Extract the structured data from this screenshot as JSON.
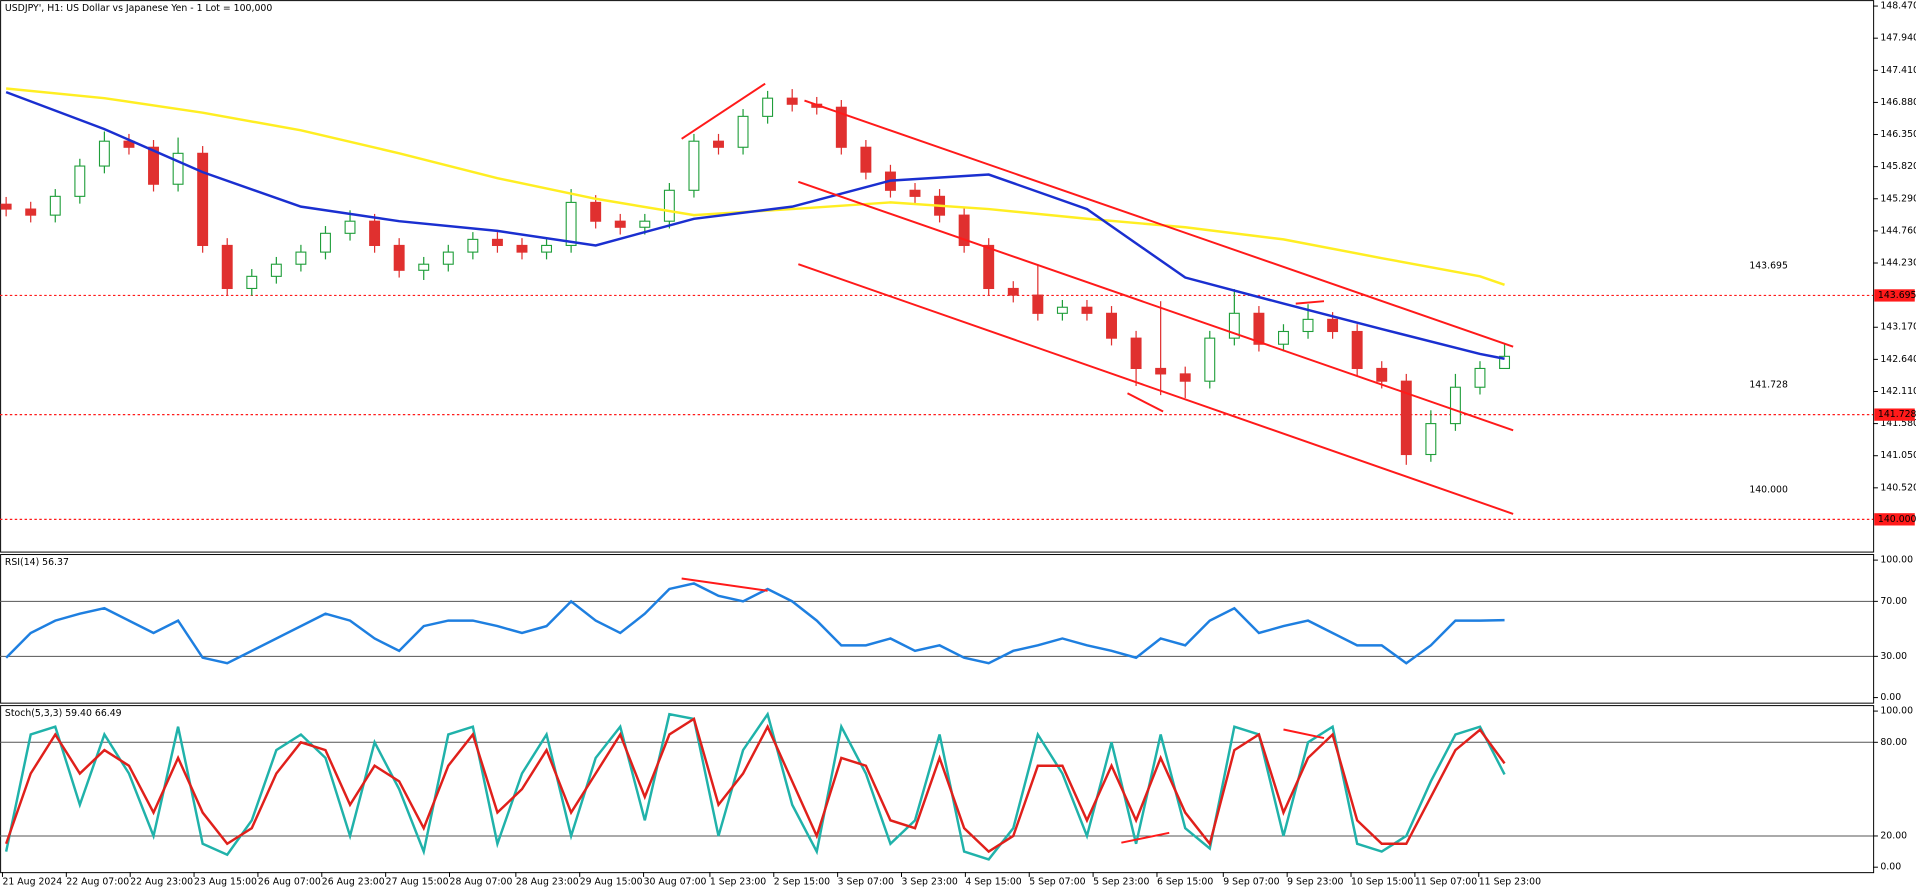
{
  "chart_data": [
    {
      "type": "candlestick",
      "title": "USDJPY', H1:  US Dollar vs Japanese Yen - 1 Lot = 100,000",
      "xlim": [
        -0.25,
        76
      ],
      "xticks": [
        {
          "value": -0.15,
          "label": "21 Aug 2024"
        },
        {
          "value": 2.45,
          "label": "22 Aug 07:00"
        },
        {
          "value": 5.05,
          "label": "22 Aug 23:00"
        },
        {
          "value": 7.65,
          "label": "23 Aug 15:00"
        },
        {
          "value": 10.25,
          "label": "26 Aug 07:00"
        },
        {
          "value": 12.85,
          "label": "26 Aug 23:00"
        },
        {
          "value": 15.45,
          "label": "27 Aug 15:00"
        },
        {
          "value": 18.05,
          "label": "28 Aug 07:00"
        },
        {
          "value": 20.75,
          "label": "28 Aug 23:00"
        },
        {
          "value": 23.35,
          "label": "29 Aug 15:00"
        },
        {
          "value": 25.95,
          "label": "30 Aug 07:00"
        },
        {
          "value": 28.65,
          "label": "1 Sep 23:00"
        },
        {
          "value": 31.25,
          "label": "2 Sep 15:00"
        },
        {
          "value": 33.85,
          "label": "3 Sep 07:00"
        },
        {
          "value": 36.45,
          "label": "3 Sep 23:00"
        },
        {
          "value": 39.05,
          "label": "4 Sep 15:00"
        },
        {
          "value": 41.65,
          "label": "5 Sep 07:00"
        },
        {
          "value": 44.25,
          "label": "5 Sep 23:00"
        },
        {
          "value": 46.85,
          "label": "6 Sep 15:00"
        },
        {
          "value": 49.55,
          "label": "9 Sep 07:00"
        },
        {
          "value": 52.15,
          "label": "9 Sep 23:00"
        },
        {
          "value": 54.75,
          "label": "10 Sep 15:00"
        },
        {
          "value": 57.35,
          "label": "11 Sep 07:00"
        },
        {
          "value": 59.95,
          "label": "11 Sep 23:00"
        }
      ],
      "ylim": [
        139.47,
        148.57
      ],
      "yticks": [
        {
          "value": 148.47,
          "label": "148.470"
        },
        {
          "value": 147.94,
          "label": "147.940"
        },
        {
          "value": 147.41,
          "label": "147.410"
        },
        {
          "value": 146.88,
          "label": "146.880"
        },
        {
          "value": 146.35,
          "label": "146.350"
        },
        {
          "value": 145.82,
          "label": "145.820"
        },
        {
          "value": 145.29,
          "label": "145.290"
        },
        {
          "value": 144.76,
          "label": "144.760"
        },
        {
          "value": 144.23,
          "label": "144.230"
        },
        {
          "value": 143.17,
          "label": "143.170"
        },
        {
          "value": 142.64,
          "label": "142.640"
        },
        {
          "value": 142.11,
          "label": "142.110"
        },
        {
          "value": 141.58,
          "label": "141.580"
        },
        {
          "value": 141.05,
          "label": "141.050"
        },
        {
          "value": 140.52,
          "label": "140.520"
        }
      ],
      "up_color": "#1f9e3a",
      "down_color": "#e0302f",
      "open": [
        145.2,
        145.12,
        145.02,
        145.33,
        145.83,
        146.24,
        146.14,
        145.53,
        146.04,
        144.52,
        143.81,
        144.01,
        144.21,
        144.41,
        144.72,
        144.92,
        144.52,
        144.11,
        144.21,
        144.41,
        144.62,
        144.52,
        144.41,
        144.52,
        145.23,
        144.92,
        144.82,
        144.92,
        145.43,
        146.24,
        146.14,
        146.65,
        146.95,
        146.85,
        146.8,
        146.14,
        145.73,
        145.43,
        145.33,
        145.02,
        144.52,
        143.81,
        143.7,
        143.4,
        143.5,
        143.4,
        142.99,
        142.49,
        142.4,
        142.28,
        142.99,
        143.4,
        142.89,
        143.1,
        143.3,
        143.1,
        142.49,
        142.28,
        141.07,
        141.58,
        142.18,
        142.49
      ],
      "high": [
        145.32,
        145.24,
        145.45,
        145.95,
        146.4,
        146.36,
        146.26,
        146.3,
        146.16,
        144.64,
        144.13,
        144.33,
        144.53,
        144.84,
        145.1,
        145.04,
        144.64,
        144.33,
        144.53,
        144.74,
        144.74,
        144.64,
        144.64,
        145.45,
        145.35,
        145.04,
        145.04,
        145.55,
        146.36,
        146.36,
        146.77,
        147.07,
        147.1,
        146.97,
        146.92,
        146.26,
        145.85,
        145.55,
        145.45,
        145.14,
        144.64,
        143.93,
        144.21,
        143.62,
        143.62,
        143.52,
        143.11,
        143.6,
        142.52,
        143.11,
        143.8,
        143.52,
        143.22,
        143.55,
        143.42,
        143.22,
        142.61,
        142.4,
        141.8,
        142.4,
        142.61,
        142.9
      ],
      "low": [
        145.0,
        144.9,
        144.9,
        145.21,
        145.71,
        146.02,
        145.41,
        145.41,
        144.4,
        143.69,
        143.69,
        143.89,
        144.09,
        144.29,
        144.6,
        144.4,
        143.99,
        143.95,
        144.09,
        144.29,
        144.4,
        144.29,
        144.29,
        144.4,
        144.8,
        144.7,
        144.7,
        144.8,
        145.31,
        146.02,
        146.02,
        146.53,
        146.73,
        146.68,
        146.02,
        145.61,
        145.31,
        145.21,
        144.9,
        144.4,
        143.69,
        143.58,
        143.28,
        143.28,
        143.28,
        142.87,
        142.2,
        142.05,
        142.0,
        142.16,
        142.87,
        142.77,
        142.77,
        142.98,
        142.98,
        142.37,
        142.16,
        140.9,
        140.95,
        141.46,
        142.06,
        142.5
      ],
      "close": [
        145.12,
        145.02,
        145.33,
        145.83,
        146.24,
        146.14,
        145.53,
        146.04,
        144.52,
        143.81,
        144.01,
        144.21,
        144.41,
        144.72,
        144.92,
        144.52,
        144.11,
        144.21,
        144.41,
        144.62,
        144.52,
        144.41,
        144.52,
        145.23,
        144.92,
        144.82,
        144.92,
        145.43,
        146.24,
        146.14,
        146.65,
        146.95,
        146.85,
        146.8,
        146.14,
        145.73,
        145.43,
        145.33,
        145.02,
        144.52,
        143.81,
        143.7,
        143.4,
        143.5,
        143.4,
        142.99,
        142.49,
        142.4,
        142.28,
        142.99,
        143.4,
        142.89,
        143.1,
        143.3,
        143.1,
        142.49,
        142.28,
        141.07,
        141.58,
        142.18,
        142.49,
        142.69
      ],
      "moving_averages": [
        {
          "color": "#ffee22",
          "x": [
            0,
            4,
            8,
            12,
            16,
            20,
            24,
            28,
            32,
            36,
            40,
            44,
            48,
            52,
            56,
            60,
            61
          ],
          "values": [
            147.11,
            146.95,
            146.71,
            146.42,
            146.04,
            145.63,
            145.29,
            145.02,
            145.12,
            145.23,
            145.12,
            144.96,
            144.82,
            144.62,
            144.31,
            144.01,
            143.87
          ]
        },
        {
          "color": "#1a2fd0",
          "x": [
            0,
            4,
            8,
            12,
            16,
            20,
            24,
            28,
            32,
            36,
            40,
            44,
            48,
            52,
            56,
            60,
            61
          ],
          "values": [
            147.05,
            146.44,
            145.73,
            145.16,
            144.92,
            144.76,
            144.52,
            144.96,
            145.16,
            145.59,
            145.69,
            145.12,
            143.99,
            143.56,
            143.14,
            142.73,
            142.65
          ]
        }
      ],
      "trendlines": [
        {
          "color": "#ff1a1a",
          "x": [
            32.5,
            61.35
          ],
          "values": [
            146.91,
            142.85
          ]
        },
        {
          "color": "#ff1a1a",
          "x": [
            32.25,
            61.35
          ],
          "values": [
            145.57,
            141.47
          ]
        },
        {
          "color": "#ff1a1a",
          "x": [
            32.25,
            61.35
          ],
          "values": [
            144.21,
            140.09
          ]
        },
        {
          "color": "#ff1a1a",
          "x": [
            27.5,
            30.9
          ],
          "values": [
            146.28,
            147.19
          ]
        },
        {
          "color": "#ff1a1a",
          "x": [
            45.65,
            47.1
          ],
          "values": [
            142.08,
            141.78
          ]
        },
        {
          "color": "#ff1a1a",
          "x": [
            52.5,
            53.65
          ],
          "values": [
            143.56,
            143.6
          ]
        }
      ],
      "levels": [
        {
          "value": 143.695,
          "label": "143.695"
        },
        {
          "value": 141.728,
          "label": "141.728"
        },
        {
          "value": 140.0,
          "label": "140.000"
        }
      ],
      "level_color": "#ff1a1a"
    },
    {
      "type": "line",
      "title": "RSI(14) 56.37",
      "ylim": [
        -3.6,
        104.5
      ],
      "yticks": [
        {
          "value": 100,
          "label": "100.00"
        },
        {
          "value": 70,
          "label": "70.00"
        },
        {
          "value": 30,
          "label": "30.00"
        },
        {
          "value": 0,
          "label": "0.00"
        }
      ],
      "levels": [
        70,
        30
      ],
      "series": [
        {
          "color": "#1e7fe0",
          "values": [
            29,
            47,
            56,
            61,
            65,
            56,
            47,
            56,
            29,
            25,
            34,
            43,
            52,
            61,
            56,
            43,
            34,
            52,
            56,
            56,
            52,
            47,
            52,
            70,
            56,
            47,
            61,
            79,
            83,
            74,
            70,
            79,
            70,
            56,
            38,
            38,
            43,
            34,
            38,
            29,
            25,
            34,
            38,
            43,
            38,
            34,
            29,
            43,
            38,
            56,
            65,
            47,
            52,
            56,
            47,
            38,
            38,
            25,
            38,
            56,
            56,
            56.37
          ]
        }
      ],
      "trendlines": [
        {
          "color": "#ff1a1a",
          "x": [
            27.5,
            31
          ],
          "values": [
            86.6,
            77.7
          ]
        }
      ]
    },
    {
      "type": "line",
      "title": "Stoch(5,3,3) 59.40 66.49",
      "ylim": [
        -3.1,
        103.9
      ],
      "yticks": [
        {
          "value": 100,
          "label": "100.00"
        },
        {
          "value": 80,
          "label": "80.00"
        },
        {
          "value": 20,
          "label": "20.00"
        },
        {
          "value": 0,
          "label": "0.00"
        }
      ],
      "levels": [
        80,
        20
      ],
      "series": [
        {
          "color": "#20b2aa",
          "values": [
            10,
            85,
            90,
            40,
            85,
            60,
            20,
            90,
            15,
            8,
            30,
            75,
            85,
            70,
            20,
            80,
            50,
            10,
            85,
            90,
            15,
            60,
            85,
            20,
            70,
            90,
            30,
            98,
            95,
            20,
            75,
            98,
            40,
            10,
            90,
            60,
            15,
            30,
            85,
            10,
            5,
            25,
            85,
            60,
            20,
            80,
            15,
            85,
            25,
            12,
            90,
            85,
            20,
            80,
            90,
            15,
            10,
            20,
            55,
            85,
            90,
            59.4
          ]
        },
        {
          "color": "#e0201b",
          "values": [
            15,
            60,
            85,
            60,
            75,
            65,
            35,
            70,
            35,
            15,
            25,
            60,
            80,
            75,
            40,
            65,
            55,
            25,
            65,
            85,
            35,
            50,
            75,
            35,
            60,
            85,
            45,
            85,
            95,
            40,
            60,
            90,
            55,
            20,
            70,
            65,
            30,
            25,
            70,
            25,
            10,
            20,
            65,
            65,
            30,
            65,
            30,
            70,
            35,
            15,
            75,
            85,
            35,
            70,
            85,
            30,
            15,
            15,
            45,
            75,
            88,
            66.49
          ]
        }
      ],
      "trendlines": [
        {
          "color": "#ff1a1a",
          "x": [
            45.4,
            47.35
          ],
          "values": [
            15.7,
            22
          ]
        },
        {
          "color": "#ff1a1a",
          "x": [
            52,
            53.65
          ],
          "values": [
            88.2,
            82.7
          ]
        }
      ]
    }
  ]
}
